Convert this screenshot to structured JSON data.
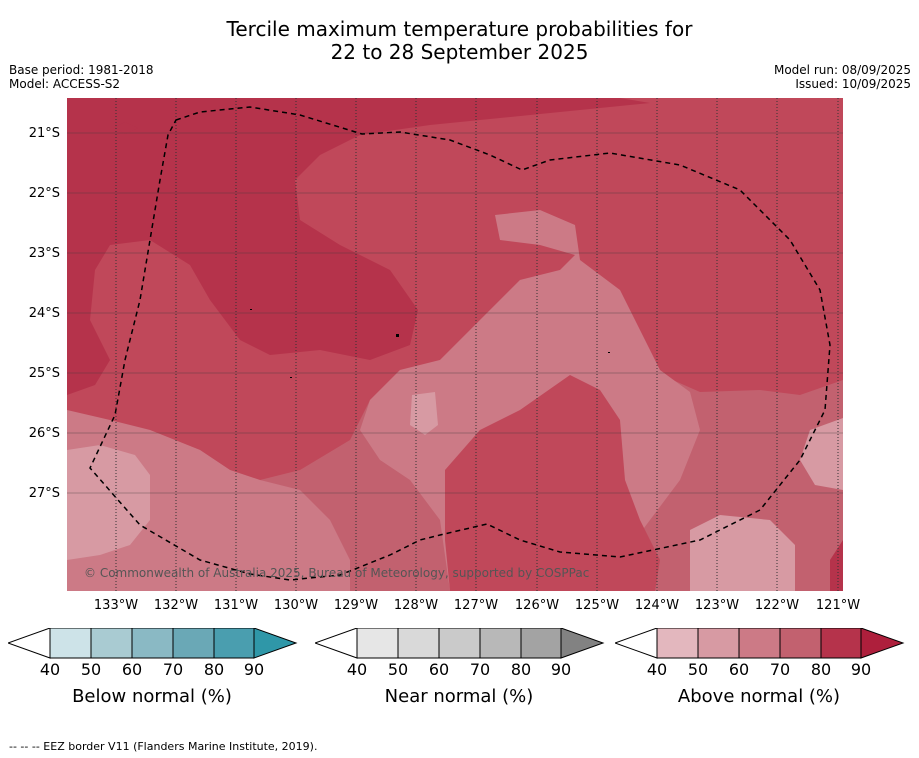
{
  "title_line1": "Tercile maximum temperature probabilities for",
  "title_line2": "22 to 28 September 2025",
  "base_period": "Base period: 1981-2018",
  "model": "Model: ACCESS-S2",
  "model_run": "Model run: 08/09/2025",
  "issued": "Issued: 10/09/2025",
  "copyright": "© Commonwealth of Australia 2025, Bureau of Meteorology, supported by COSPPac",
  "footnote": "--  --  -- EEZ border V11 (Flanders Marine Institute, 2019).",
  "lat_labels": [
    "21°S",
    "22°S",
    "23°S",
    "24°S",
    "25°S",
    "26°S",
    "27°S"
  ],
  "lon_labels": [
    "133°W",
    "132°W",
    "131°W",
    "130°W",
    "129°W",
    "128°W",
    "127°W",
    "126°W",
    "125°W",
    "124°W",
    "123°W",
    "122°W",
    "121°W"
  ],
  "colorbars": [
    {
      "title": "Below normal (%)",
      "ticks": [
        "40",
        "50",
        "60",
        "70",
        "80",
        "90"
      ],
      "colors": [
        "#ffffff",
        "#cde3e8",
        "#a9cbd2",
        "#8ab9c4",
        "#6aa8b6",
        "#4a9eaf",
        "#2f97a8"
      ]
    },
    {
      "title": "Near normal (%)",
      "ticks": [
        "40",
        "50",
        "60",
        "70",
        "80",
        "90"
      ],
      "colors": [
        "#ffffff",
        "#e6e6e6",
        "#d9d9d9",
        "#cacaca",
        "#b8b8b8",
        "#a3a3a3",
        "#828282"
      ]
    },
    {
      "title": "Above normal (%)",
      "ticks": [
        "40",
        "50",
        "60",
        "70",
        "80",
        "90"
      ],
      "colors": [
        "#ffffff",
        "#e3b7be",
        "#d79aa3",
        "#cc7a86",
        "#c2616f",
        "#b5334b",
        "#ae1f3c"
      ]
    }
  ],
  "map_colors": {
    "c40": "#d79aa3",
    "c50": "#cc7a86",
    "c60": "#c2616f",
    "c70": "#c0485a",
    "c80": "#b5334b"
  }
}
